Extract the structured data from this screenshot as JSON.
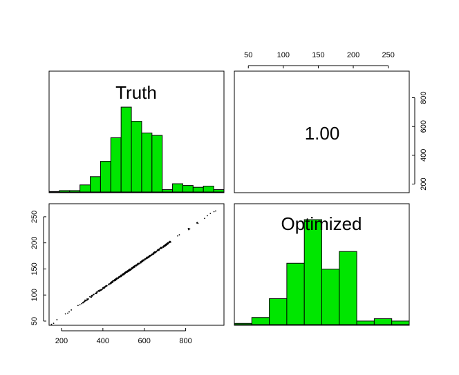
{
  "chart_data": {
    "type": "scatter-matrix",
    "variables": [
      "Truth",
      "Optimized"
    ],
    "panels": {
      "truth_hist": {
        "label": "Truth",
        "bin_edges": [
          150,
          200,
          250,
          300,
          350,
          400,
          450,
          500,
          550,
          600,
          650,
          700,
          750,
          800,
          850,
          900,
          950,
          1000
        ],
        "heights": [
          0.004,
          0.012,
          0.012,
          0.06,
          0.13,
          0.26,
          0.46,
          0.72,
          0.6,
          0.5,
          0.48,
          0.02,
          0.07,
          0.055,
          0.04,
          0.05,
          0.02
        ],
        "fill_color": "#00e600"
      },
      "optimized_hist": {
        "label": "Optimized",
        "bin_edges": [
          25,
          50,
          75,
          100,
          125,
          150,
          175,
          200,
          225,
          250,
          275
        ],
        "heights": [
          0.01,
          0.06,
          0.22,
          0.52,
          0.89,
          0.47,
          0.62,
          0.03,
          0.05,
          0.03,
          0.03
        ],
        "fill_color": "#00e600"
      },
      "scatter": {
        "x_var": "Truth",
        "y_var": "Optimized",
        "xlim": [
          140,
          985
        ],
        "ylim": [
          42,
          275
        ],
        "x_ticks": [
          200,
          400,
          600,
          800
        ],
        "y_ticks": [
          50,
          100,
          150,
          200,
          250
        ],
        "line_fit": {
          "x0": 150,
          "y0": 44,
          "x1": 980,
          "y1": 272
        }
      },
      "correlation": {
        "value": "1.00"
      }
    },
    "top_axis": {
      "ticks": [
        50,
        100,
        150,
        200,
        250
      ],
      "lim": [
        30,
        280
      ]
    },
    "right_axis": {
      "ticks": [
        200,
        400,
        600,
        800
      ],
      "lim": [
        140,
        985
      ]
    }
  }
}
